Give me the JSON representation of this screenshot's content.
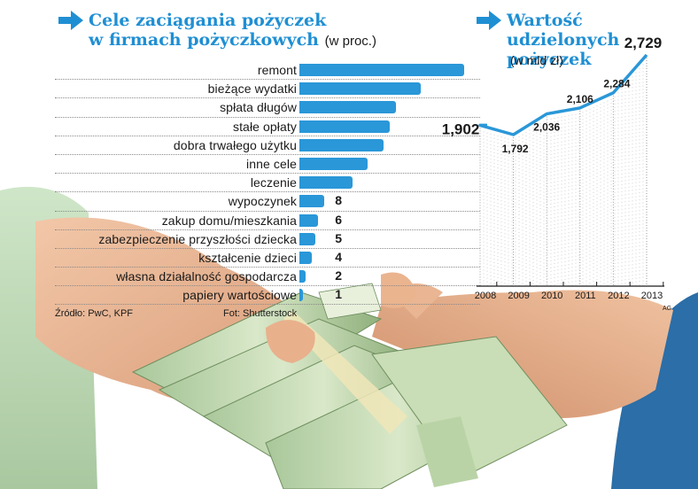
{
  "left_title": {
    "line1": "Cele zaciągania pożyczek",
    "line2": "w firmach pożyczkowych",
    "unit": "(w proc.)"
  },
  "right_title": {
    "line1": "Wartość udzielonych",
    "line2": "pożyczek",
    "unit": "(w mld zł)"
  },
  "footer": {
    "source": "Źródło: PwC, KPF",
    "photo_credit": "Fot: Shutterstock",
    "signature": "AG"
  },
  "chart_data": [
    {
      "type": "bar",
      "orientation": "horizontal",
      "categories": [
        "remont",
        "bieżące wydatki",
        "spłata długów",
        "stałe opłaty",
        "dobra trwałego użytku",
        "inne cele",
        "leczenie",
        "wypoczynek",
        "zakup domu/mieszkania",
        "zabezpieczenie przyszłości dziecka",
        "kształcenie dzieci",
        "własna działalność gospodarcza",
        "papiery wartościowe"
      ],
      "values": [
        53,
        39,
        31,
        29,
        27,
        22,
        17,
        8,
        6,
        5,
        4,
        2,
        1
      ],
      "value_labels": [
        "53",
        "39",
        "31",
        "29",
        "27",
        "22",
        "17",
        "8",
        "6",
        "5",
        "4",
        "2",
        "1"
      ],
      "bar_color": "#2a97d8"
    },
    {
      "type": "line",
      "x": [
        "2008",
        "2009",
        "2010",
        "2011",
        "2012",
        "2013"
      ],
      "values": [
        1.902,
        1.792,
        2.036,
        2.106,
        2.284,
        2.729
      ],
      "value_labels": [
        "1,902",
        "1,792",
        "2,036",
        "2,106",
        "2,284",
        "2,729"
      ],
      "line_color": "#2a97d8",
      "grid": "dotted vertical lines"
    }
  ]
}
